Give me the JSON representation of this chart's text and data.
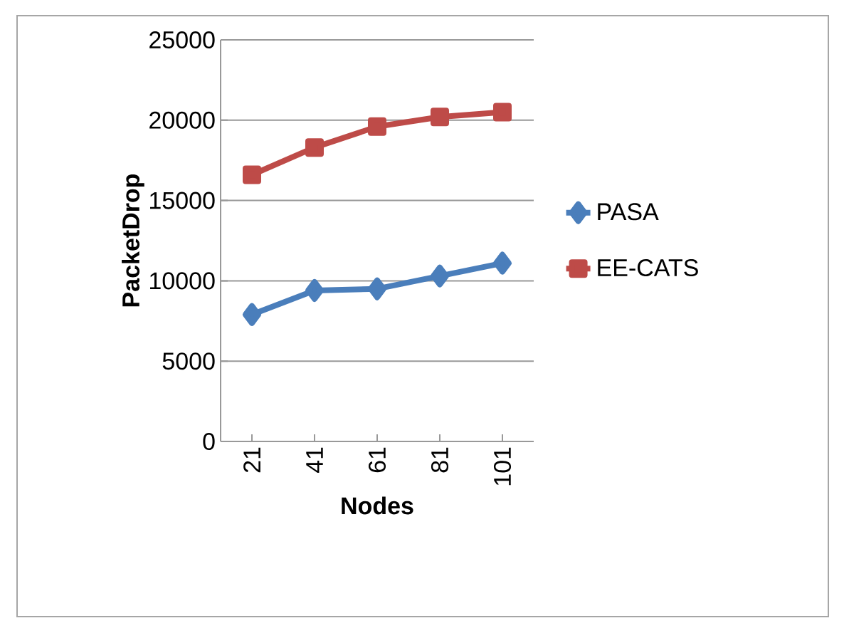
{
  "chart_data": {
    "type": "line",
    "xlabel": "Nodes",
    "ylabel": "PacketDrop",
    "categories": [
      "21",
      "41",
      "61",
      "81",
      "101"
    ],
    "series": [
      {
        "name": "PASA",
        "color": "#4a7ebb",
        "marker": "diamond",
        "values": [
          7900,
          9400,
          9500,
          10300,
          11100
        ]
      },
      {
        "name": "EE-CATS",
        "color": "#be4b48",
        "marker": "square",
        "values": [
          16600,
          18300,
          19600,
          20200,
          20500
        ]
      }
    ],
    "ylim": [
      0,
      25000
    ],
    "yticks": [
      0,
      5000,
      10000,
      15000,
      20000,
      25000
    ],
    "grid": "y",
    "legend": "right",
    "line_style": "solid"
  }
}
